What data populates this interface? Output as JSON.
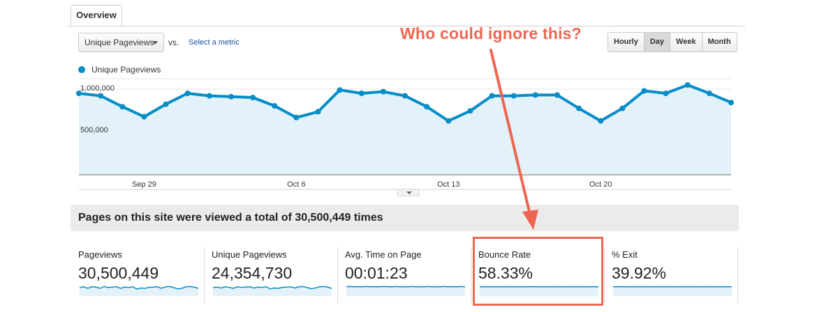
{
  "tabs": {
    "overview": "Overview"
  },
  "controls": {
    "metric_select": "Unique Pageviews",
    "vs": "vs.",
    "select_metric": "Select a metric",
    "granularity": [
      "Hourly",
      "Day",
      "Week",
      "Month"
    ],
    "active_granularity": "Day"
  },
  "annotation": {
    "text": "Who could ignore this?",
    "color": "#ee6651"
  },
  "chart_data": {
    "type": "area",
    "series": [
      {
        "name": "Unique Pageviews",
        "color": "#058dc7",
        "values": [
          950000,
          920000,
          790000,
          670000,
          820000,
          950000,
          920000,
          910000,
          900000,
          800000,
          660000,
          730000,
          990000,
          950000,
          970000,
          920000,
          790000,
          620000,
          740000,
          920000,
          920000,
          930000,
          930000,
          770000,
          620000,
          770000,
          980000,
          950000,
          1050000,
          950000,
          840000
        ]
      }
    ],
    "x_tick_labels": [
      {
        "index": 3,
        "label": "Sep 29"
      },
      {
        "index": 10,
        "label": "Oct 6"
      },
      {
        "index": 17,
        "label": "Oct 13"
      },
      {
        "index": 24,
        "label": "Oct 20"
      }
    ],
    "y_tick_labels": [
      {
        "value": 1000000,
        "label": "1,000,000"
      },
      {
        "value": 500000,
        "label": "500,000"
      }
    ],
    "ylim": [
      0,
      1000000
    ],
    "grid": true
  },
  "summary": {
    "text": "Pages on this site were viewed a total of 30,500,449 times"
  },
  "metrics": [
    {
      "label": "Pageviews",
      "value": "30,500,449",
      "spark": [
        0.55,
        0.6,
        0.5,
        0.6,
        0.58,
        0.5,
        0.62,
        0.55,
        0.58,
        0.6,
        0.5,
        0.58,
        0.56,
        0.6,
        0.45,
        0.52,
        0.5,
        0.56,
        0.58,
        0.6,
        0.5,
        0.6,
        0.62,
        0.55,
        0.46,
        0.5,
        0.6,
        0.62,
        0.58,
        0.5
      ]
    },
    {
      "label": "Unique Pageviews",
      "value": "24,354,730",
      "spark": [
        0.55,
        0.58,
        0.52,
        0.6,
        0.56,
        0.5,
        0.6,
        0.56,
        0.58,
        0.6,
        0.52,
        0.58,
        0.56,
        0.6,
        0.46,
        0.52,
        0.5,
        0.56,
        0.58,
        0.6,
        0.52,
        0.6,
        0.62,
        0.55,
        0.48,
        0.52,
        0.6,
        0.62,
        0.58,
        0.5
      ]
    },
    {
      "label": "Avg. Time on Page",
      "value": "00:01:23",
      "spark": [
        0.6,
        0.62,
        0.6,
        0.61,
        0.6,
        0.62,
        0.6,
        0.61,
        0.6,
        0.62,
        0.61,
        0.6,
        0.62,
        0.6,
        0.61,
        0.6,
        0.62,
        0.6,
        0.61,
        0.6,
        0.62,
        0.6,
        0.61,
        0.6,
        0.62,
        0.6,
        0.61,
        0.6,
        0.62,
        0.6
      ]
    },
    {
      "label": "Bounce Rate",
      "value": "58.33%",
      "spark": [
        0.6,
        0.61,
        0.6,
        0.6,
        0.61,
        0.6,
        0.6,
        0.61,
        0.6,
        0.6,
        0.61,
        0.6,
        0.6,
        0.61,
        0.6,
        0.6,
        0.61,
        0.6,
        0.6,
        0.61,
        0.6,
        0.6,
        0.61,
        0.6,
        0.6,
        0.61,
        0.6,
        0.6,
        0.61,
        0.6
      ]
    },
    {
      "label": "% Exit",
      "value": "39.92%",
      "spark": [
        0.6,
        0.6,
        0.61,
        0.6,
        0.6,
        0.61,
        0.6,
        0.6,
        0.61,
        0.6,
        0.6,
        0.61,
        0.6,
        0.6,
        0.61,
        0.6,
        0.6,
        0.61,
        0.6,
        0.6,
        0.61,
        0.6,
        0.6,
        0.61,
        0.6,
        0.6,
        0.61,
        0.6,
        0.6,
        0.61
      ]
    }
  ]
}
